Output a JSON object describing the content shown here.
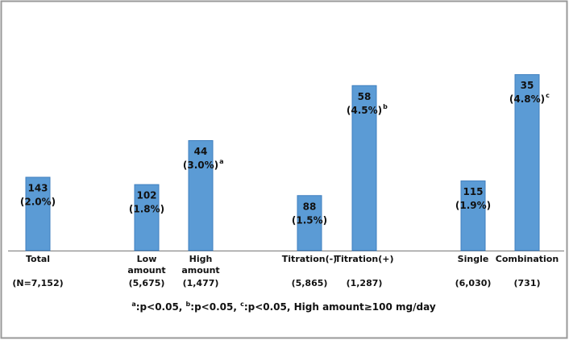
{
  "chart_data": {
    "type": "bar",
    "categories": [
      [
        "Total"
      ],
      [
        "Low",
        "amount"
      ],
      [
        "High",
        "amount"
      ],
      [
        "Titration(-)"
      ],
      [
        "Titration(+)"
      ],
      [
        "Single"
      ],
      [
        "Combination"
      ]
    ],
    "sublabels": [
      "(N=7,152)",
      "(5,675)",
      "(1,477)",
      "(5,865)",
      "(1,287)",
      "(6,030)",
      "(731)"
    ],
    "counts": [
      143,
      102,
      44,
      88,
      58,
      115,
      35
    ],
    "values": [
      2.0,
      1.8,
      3.0,
      1.5,
      4.5,
      1.9,
      4.8
    ],
    "value_labels": [
      "(2.0%)",
      "(1.8%)",
      "(3.0%)",
      "(1.5%)",
      "(4.5%)",
      "(1.9%)",
      "(4.8%)"
    ],
    "superscripts": [
      null,
      null,
      "a",
      null,
      "b",
      null,
      "c"
    ],
    "color": "#5b9bd5",
    "footnote": [
      {
        "sup": "a",
        "text": ":p<0.05, "
      },
      {
        "sup": "b",
        "text": ":p<0.05, "
      },
      {
        "sup": "c",
        "text": ":p<0.05, High amount≥100 mg/day"
      }
    ]
  }
}
